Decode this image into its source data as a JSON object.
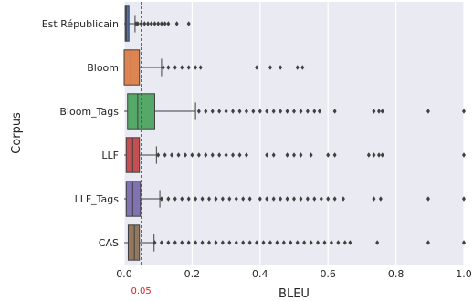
{
  "chart_data": {
    "type": "boxplot",
    "orientation": "horizontal",
    "xlabel": "BLEU",
    "ylabel": "Corpus",
    "xlim": [
      0,
      1.0
    ],
    "xticks": [
      0.0,
      0.2,
      0.4,
      0.6,
      0.8,
      1.0
    ],
    "xtick_labels": [
      "0.0",
      "0.2",
      "0.4",
      "0.6",
      "0.8",
      "1.0"
    ],
    "grid": true,
    "background": "#eaeaf2",
    "threshold": {
      "value": 0.05,
      "label": "0.05",
      "color": "#e41a1c"
    },
    "categories": [
      "Est Républicain",
      "Bloom",
      "Bloom_Tags",
      "LLF",
      "LLF_Tags",
      "CAS"
    ],
    "series": [
      {
        "category": "Est Républicain",
        "color": "#4c72b0",
        "whisker_low": 0.0,
        "q1": 0.003,
        "median": 0.006,
        "q3": 0.014,
        "whisker_high": 0.032,
        "outliers": [
          0.035,
          0.04,
          0.05,
          0.06,
          0.07,
          0.08,
          0.09,
          0.1,
          0.11,
          0.12,
          0.13,
          0.155,
          0.19
        ]
      },
      {
        "category": "Bloom",
        "color": "#dd8452",
        "whisker_low": 0.0,
        "q1": 0.0,
        "median": 0.02,
        "q3": 0.045,
        "whisker_high": 0.11,
        "outliers": [
          0.115,
          0.13,
          0.15,
          0.17,
          0.19,
          0.21,
          0.225,
          0.39,
          0.43,
          0.46,
          0.51,
          0.525
        ]
      },
      {
        "category": "Bloom_Tags",
        "color": "#55a868",
        "whisker_low": 0.0,
        "q1": 0.01,
        "median": 0.04,
        "q3": 0.09,
        "whisker_high": 0.21,
        "outliers": [
          0.22,
          0.24,
          0.26,
          0.28,
          0.3,
          0.32,
          0.34,
          0.36,
          0.38,
          0.4,
          0.42,
          0.44,
          0.46,
          0.48,
          0.5,
          0.52,
          0.54,
          0.56,
          0.575,
          0.62,
          0.735,
          0.75,
          0.76,
          0.895,
          1.0
        ]
      },
      {
        "category": "LLF",
        "color": "#c44e52",
        "whisker_low": 0.0,
        "q1": 0.006,
        "median": 0.025,
        "q3": 0.045,
        "whisker_high": 0.095,
        "outliers": [
          0.1,
          0.12,
          0.14,
          0.16,
          0.18,
          0.2,
          0.22,
          0.24,
          0.26,
          0.28,
          0.3,
          0.32,
          0.34,
          0.36,
          0.42,
          0.44,
          0.48,
          0.5,
          0.52,
          0.55,
          0.6,
          0.62,
          0.72,
          0.735,
          0.75,
          0.76,
          1.0
        ]
      },
      {
        "category": "LLF_Tags",
        "color": "#8172b3",
        "whisker_low": 0.0,
        "q1": 0.006,
        "median": 0.025,
        "q3": 0.048,
        "whisker_high": 0.105,
        "outliers": [
          0.11,
          0.13,
          0.15,
          0.17,
          0.19,
          0.21,
          0.23,
          0.25,
          0.27,
          0.29,
          0.31,
          0.33,
          0.35,
          0.37,
          0.4,
          0.42,
          0.44,
          0.46,
          0.48,
          0.5,
          0.52,
          0.54,
          0.56,
          0.58,
          0.6,
          0.62,
          0.645,
          0.735,
          0.755,
          0.895,
          1.0
        ]
      },
      {
        "category": "CAS",
        "color": "#937860",
        "whisker_low": 0.0,
        "q1": 0.012,
        "median": 0.03,
        "q3": 0.045,
        "whisker_high": 0.088,
        "outliers": [
          0.09,
          0.11,
          0.13,
          0.15,
          0.17,
          0.19,
          0.21,
          0.23,
          0.25,
          0.27,
          0.29,
          0.31,
          0.33,
          0.35,
          0.37,
          0.39,
          0.41,
          0.43,
          0.45,
          0.47,
          0.49,
          0.51,
          0.53,
          0.55,
          0.57,
          0.59,
          0.61,
          0.63,
          0.65,
          0.665,
          0.745,
          0.895,
          1.0
        ]
      }
    ]
  }
}
